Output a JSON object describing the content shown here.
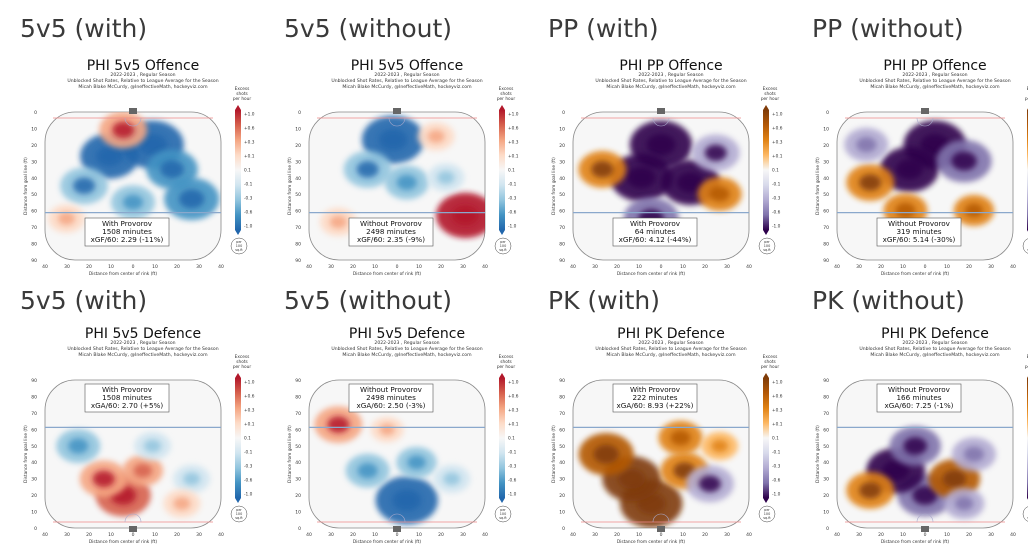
{
  "panels": [
    {
      "section": "5v5 (with)",
      "title": "PHI 5v5 Offence",
      "season": "2022-2023 , Regular Season",
      "subtitle": "Unblocked Shot Rates, Relative to League Average for the Season",
      "credit": "Micah Blake McCurdy, @IneffectiveMath, hockeyviz.com",
      "colorbar_title": [
        "Excess",
        "shots",
        "per hour"
      ],
      "info": {
        "player": "With Provorov",
        "minutes": "1508 minutes",
        "xg": "xGF/60: 2.29 (-11%)"
      },
      "palette": "bwr",
      "infoPos": "bottom",
      "goalPos": "top"
    },
    {
      "section": "5v5 (without)",
      "title": "PHI 5v5 Offence",
      "season": "2022-2023 , Regular Season",
      "subtitle": "Unblocked Shot Rates, Relative to League Average for the Season",
      "credit": "Micah Blake McCurdy, @IneffectiveMath, hockeyviz.com",
      "colorbar_title": [
        "Excess",
        "shots",
        "per hour"
      ],
      "info": {
        "player": "Without Provorov",
        "minutes": "2498 minutes",
        "xg": "xGF/60: 2.35 (-9%)"
      },
      "palette": "bwr",
      "infoPos": "bottom",
      "goalPos": "top"
    },
    {
      "section": "PP (with)",
      "title": "PHI PP Offence",
      "season": "2022-2023 , Regular Season",
      "subtitle": "Unblocked Shot Rates, Relative to League Average for the Season",
      "credit": "Micah Blake McCurdy, @IneffectiveMath, hockeyviz.com",
      "colorbar_title": [
        "Excess",
        "shots",
        "per hour"
      ],
      "info": {
        "player": "With Provorov",
        "minutes": "64 minutes",
        "xg": "xGF/60: 4.12 (-44%)"
      },
      "palette": "puor",
      "infoPos": "bottom",
      "goalPos": "top"
    },
    {
      "section": "PP (without)",
      "title": "PHI PP Offence",
      "season": "2022-2023 , Regular Season",
      "subtitle": "Unblocked Shot Rates, Relative to League Average for the Season",
      "credit": "Micah Blake McCurdy, @IneffectiveMath, hockeyviz.com",
      "colorbar_title": [
        "Excess",
        "shots",
        "per hour"
      ],
      "info": {
        "player": "Without Provorov",
        "minutes": "319 minutes",
        "xg": "xGF/60: 5.14 (-30%)"
      },
      "palette": "puor",
      "infoPos": "bottom",
      "goalPos": "top"
    },
    {
      "section": "5v5 (with)",
      "title": "PHI 5v5 Defence",
      "season": "2022-2023 , Regular Season",
      "subtitle": "Unblocked Shot Rates, Relative to League Average for the Season",
      "credit": "Micah Blake McCurdy, @IneffectiveMath, hockeyviz.com",
      "colorbar_title": [
        "Excess",
        "shots",
        "per hour"
      ],
      "info": {
        "player": "With Provorov",
        "minutes": "1508 minutes",
        "xg": "xGA/60: 2.70 (+5%)"
      },
      "palette": "bwr",
      "infoPos": "top",
      "goalPos": "bottom"
    },
    {
      "section": "5v5 (without)",
      "title": "PHI 5v5 Defence",
      "season": "2022-2023 , Regular Season",
      "subtitle": "Unblocked Shot Rates, Relative to League Average for the Season",
      "credit": "Micah Blake McCurdy, @IneffectiveMath, hockeyviz.com",
      "colorbar_title": [
        "Excess",
        "shots",
        "per hour"
      ],
      "info": {
        "player": "Without Provorov",
        "minutes": "2498 minutes",
        "xg": "xGA/60: 2.50 (-3%)"
      },
      "palette": "bwr",
      "infoPos": "top",
      "goalPos": "bottom"
    },
    {
      "section": "PK (with)",
      "title": "PHI PK Defence",
      "season": "2022-2023 , Regular Season",
      "subtitle": "Unblocked Shot Rates, Relative to League Average for the Season",
      "credit": "Micah Blake McCurdy, @IneffectiveMath, hockeyviz.com",
      "colorbar_title": [
        "Excess",
        "shots",
        "per hour"
      ],
      "info": {
        "player": "With Provorov",
        "minutes": "222 minutes",
        "xg": "xGA/60: 8.93 (+22%)"
      },
      "palette": "puor",
      "infoPos": "top",
      "goalPos": "bottom"
    },
    {
      "section": "PK (without)",
      "title": "PHI PK Defence",
      "season": "2022-2023 , Regular Season",
      "subtitle": "Unblocked Shot Rates, Relative to League Average for the Season",
      "credit": "Micah Blake McCurdy, @IneffectiveMath, hockeyviz.com",
      "colorbar_title": [
        "Excess",
        "shots",
        "per hour"
      ],
      "info": {
        "player": "Without Provorov",
        "minutes": "166 minutes",
        "xg": "xGA/60: 7.25 (-1%)"
      },
      "palette": "puor",
      "infoPos": "top",
      "goalPos": "bottom"
    }
  ],
  "chart_data": {
    "type": "heatmap",
    "xlabel": "Distance from center of rink (ft)",
    "ylabel": "Distance from goal line (ft)",
    "x_ticks": [
      "40",
      "30",
      "20",
      "10",
      "0",
      "10",
      "20",
      "30",
      "40"
    ],
    "y_ticks": [
      "0",
      "10",
      "20",
      "30",
      "40",
      "50",
      "60",
      "70",
      "80",
      "90"
    ],
    "colorbar_ticks": [
      "+1.0",
      "+0.6",
      "+0.3",
      "+0.1",
      "0.1",
      "-0.1",
      "-0.3",
      "-0.6",
      "-1.0"
    ],
    "units_badge": [
      "per",
      "100",
      "sq.ft"
    ],
    "colors": {
      "bwr": [
        "#b2182b",
        "#d6604d",
        "#f4a582",
        "#fddbc7",
        "#f7f7f7",
        "#d1e5f0",
        "#92c5de",
        "#4393c3",
        "#2166ac"
      ],
      "puor": [
        "#7f3b08",
        "#b35806",
        "#e08214",
        "#fdb863",
        "#f7f7f7",
        "#d8daeb",
        "#b2abd2",
        "#8073ac",
        "#2d004b"
      ]
    },
    "blobs": [
      [
        {
          "x": -12,
          "y": 22,
          "v": -0.9
        },
        {
          "x": 10,
          "y": 15,
          "v": -1.0
        },
        {
          "x": 20,
          "y": 30,
          "v": -0.7
        },
        {
          "x": -25,
          "y": 40,
          "v": -0.6
        },
        {
          "x": 0,
          "y": 50,
          "v": -0.5
        },
        {
          "x": 30,
          "y": 48,
          "v": -0.8
        },
        {
          "x": -5,
          "y": 6,
          "v": 0.6
        },
        {
          "x": -34,
          "y": 60,
          "v": 0.3
        }
      ],
      [
        {
          "x": -2,
          "y": 12,
          "v": -1.0
        },
        {
          "x": -15,
          "y": 30,
          "v": -0.6
        },
        {
          "x": 5,
          "y": 38,
          "v": -0.5
        },
        {
          "x": 35,
          "y": 58,
          "v": 0.9
        },
        {
          "x": -30,
          "y": 62,
          "v": 0.3
        },
        {
          "x": 20,
          "y": 10,
          "v": 0.3
        },
        {
          "x": 25,
          "y": 35,
          "v": -0.3
        }
      ],
      [
        {
          "x": 0,
          "y": 15,
          "v": -1.0
        },
        {
          "x": -10,
          "y": 35,
          "v": -1.0
        },
        {
          "x": 15,
          "y": 38,
          "v": -0.9
        },
        {
          "x": -30,
          "y": 30,
          "v": 0.6
        },
        {
          "x": 30,
          "y": 45,
          "v": 0.5
        },
        {
          "x": -5,
          "y": 60,
          "v": -0.8
        },
        {
          "x": 28,
          "y": 20,
          "v": -0.6
        }
      ],
      [
        {
          "x": 5,
          "y": 15,
          "v": -1.0
        },
        {
          "x": -8,
          "y": 30,
          "v": -0.9
        },
        {
          "x": 20,
          "y": 25,
          "v": -0.8
        },
        {
          "x": -28,
          "y": 38,
          "v": 0.6
        },
        {
          "x": -10,
          "y": 55,
          "v": 0.5
        },
        {
          "x": 25,
          "y": 55,
          "v": 0.4
        },
        {
          "x": -30,
          "y": 15,
          "v": -0.5
        }
      ],
      [
        {
          "x": -5,
          "y": 15,
          "v": 0.8
        },
        {
          "x": -15,
          "y": 25,
          "v": 0.6
        },
        {
          "x": 5,
          "y": 30,
          "v": 0.4
        },
        {
          "x": -28,
          "y": 45,
          "v": -0.5
        },
        {
          "x": 10,
          "y": 45,
          "v": -0.3
        },
        {
          "x": 30,
          "y": 25,
          "v": -0.3
        },
        {
          "x": 25,
          "y": 10,
          "v": 0.3
        }
      ],
      [
        {
          "x": 5,
          "y": 12,
          "v": -1.0
        },
        {
          "x": -15,
          "y": 30,
          "v": -0.5
        },
        {
          "x": 10,
          "y": 35,
          "v": -0.4
        },
        {
          "x": -30,
          "y": 58,
          "v": 0.6
        },
        {
          "x": 28,
          "y": 25,
          "v": -0.3
        },
        {
          "x": -5,
          "y": 55,
          "v": 0.2
        }
      ],
      [
        {
          "x": -5,
          "y": 10,
          "v": 1.0
        },
        {
          "x": -15,
          "y": 25,
          "v": 0.9
        },
        {
          "x": 12,
          "y": 30,
          "v": 0.6
        },
        {
          "x": -28,
          "y": 40,
          "v": 0.8
        },
        {
          "x": 25,
          "y": 22,
          "v": -0.6
        },
        {
          "x": 10,
          "y": 50,
          "v": 0.5
        },
        {
          "x": 30,
          "y": 45,
          "v": 0.3
        }
      ],
      [
        {
          "x": 0,
          "y": 15,
          "v": -0.8
        },
        {
          "x": -15,
          "y": 30,
          "v": -0.9
        },
        {
          "x": 15,
          "y": 25,
          "v": 0.7
        },
        {
          "x": -28,
          "y": 18,
          "v": 0.6
        },
        {
          "x": -5,
          "y": 45,
          "v": -0.7
        },
        {
          "x": 25,
          "y": 40,
          "v": -0.5
        },
        {
          "x": 20,
          "y": 10,
          "v": -0.4
        }
      ]
    ]
  }
}
